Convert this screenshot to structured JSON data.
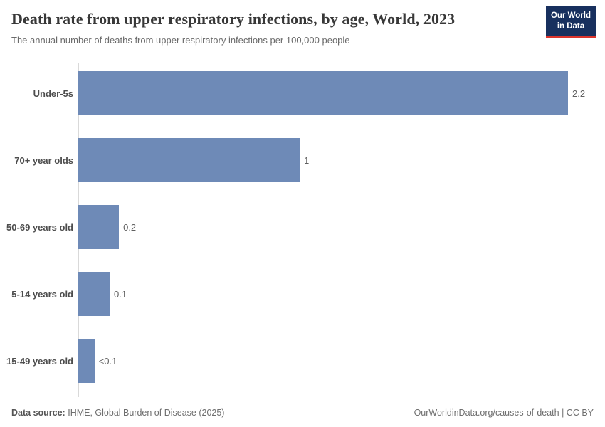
{
  "header": {
    "title": "Death rate from upper respiratory infections, by age, World, 2023",
    "subtitle": "The annual number of deaths from upper respiratory infections per 100,000 people",
    "logo_line1": "Our World",
    "logo_line2": "in Data"
  },
  "chart_data": {
    "type": "bar",
    "orientation": "horizontal",
    "title": "Death rate from upper respiratory infections, by age, World, 2023",
    "subtitle": "The annual number of deaths from upper respiratory infections per 100,000 people",
    "categories": [
      "Under-5s",
      "70+ year olds",
      "50-69 years old",
      "5-14 years old",
      "15-49 years old"
    ],
    "values": [
      2.2,
      1,
      0.2,
      0.1,
      0.07
    ],
    "value_labels": [
      "2.2",
      "1",
      "0.2",
      "0.1",
      "<0.1"
    ],
    "bar_fractions": [
      1,
      0.452,
      0.083,
      0.064,
      0.033
    ],
    "xlim": [
      0,
      2.2
    ],
    "unit": "deaths per 100,000 people",
    "grid": false,
    "bar_color": "#6e8ab7",
    "axis_line_color": "#d9d9d9"
  },
  "footer": {
    "source_label": "Data source:",
    "source_value": "IHME, Global Burden of Disease (2025)",
    "credit": "OurWorldinData.org/causes-of-death | CC BY"
  },
  "colors": {
    "logo_navy": "#18305e",
    "logo_red": "#dc342c",
    "bar": "#6e8ab7"
  }
}
